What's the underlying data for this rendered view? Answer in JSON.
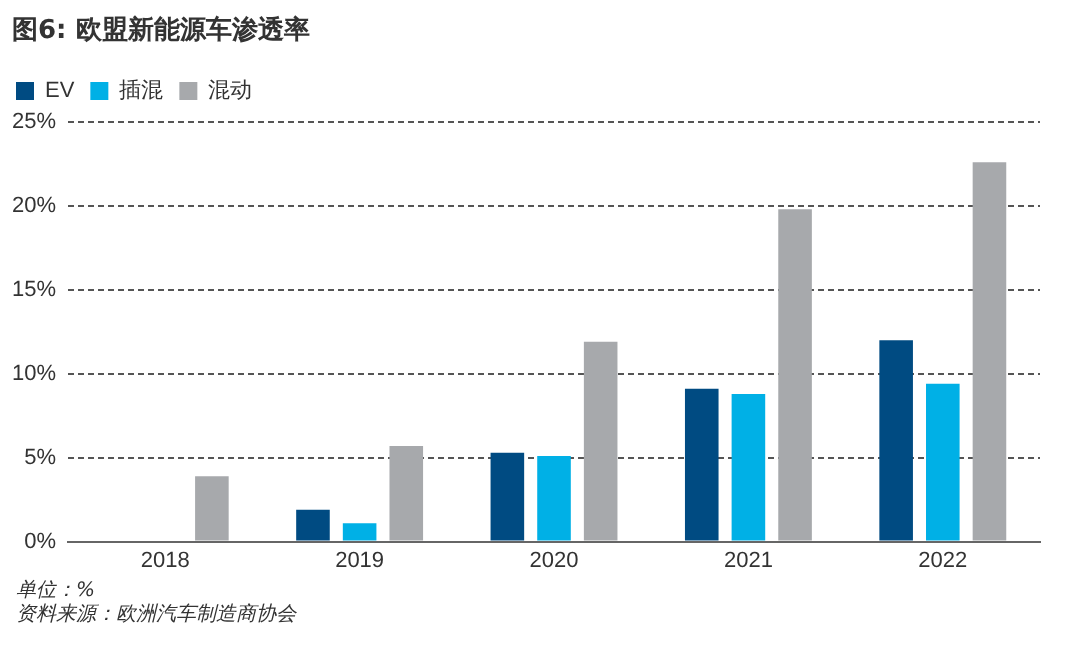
{
  "chart_data": {
    "type": "bar",
    "title": "图6: 欧盟新能源车渗透率",
    "categories": [
      "2018",
      "2019",
      "2020",
      "2021",
      "2022"
    ],
    "series": [
      {
        "name": "EV",
        "color": "#004b82",
        "values": [
          null,
          1.9,
          5.3,
          9.1,
          12.0
        ]
      },
      {
        "name": "插混",
        "color": "#00b0e6",
        "values": [
          null,
          1.1,
          5.1,
          8.8,
          9.4
        ]
      },
      {
        "name": "混动",
        "color": "#a7a9ac",
        "values": [
          3.9,
          5.7,
          11.9,
          19.8,
          22.6
        ]
      }
    ],
    "ylim": [
      0,
      25
    ],
    "yticks": [
      {
        "value": 0,
        "label": "0%"
      },
      {
        "value": 5,
        "label": "5%"
      },
      {
        "value": 10,
        "label": "10%"
      },
      {
        "value": 15,
        "label": "15%"
      },
      {
        "value": 20,
        "label": "20%"
      },
      {
        "value": 25,
        "label": "25%"
      }
    ],
    "grid": "y",
    "legend": "top left",
    "annotations": [
      "单位：%",
      "资料来源：欧洲汽车制造商协会"
    ]
  }
}
